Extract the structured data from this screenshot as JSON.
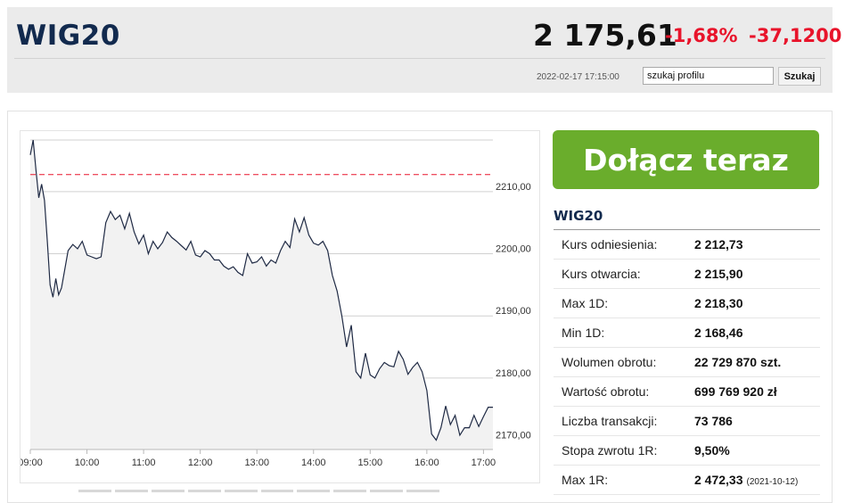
{
  "header": {
    "title": "WIG20",
    "price": "2 175,61",
    "change_pct": "-1,68%",
    "change_abs": "-37,1200",
    "timestamp": "2022-02-17 17:15:00",
    "search_value": "szukaj profilu",
    "search_button": "Szukaj"
  },
  "cta": {
    "label": "Dołącz teraz"
  },
  "stats": {
    "title": "WIG20",
    "rows": [
      {
        "label": "Kurs odniesienia:",
        "value": "2 212,73"
      },
      {
        "label": "Kurs otwarcia:",
        "value": "2 215,90"
      },
      {
        "label": "Max 1D:",
        "value": "2 218,30"
      },
      {
        "label": "Min 1D:",
        "value": "2 168,46"
      },
      {
        "label": "Wolumen obrotu:",
        "value": "22 729 870 szt."
      },
      {
        "label": "Wartość obrotu:",
        "value": "699 769 920 zł"
      },
      {
        "label": "Liczba transakcji:",
        "value": "73 786"
      },
      {
        "label": "Stopa zwrotu 1R:",
        "value": "9,50%"
      },
      {
        "label": "Max 1R:",
        "value": "2 472,33",
        "note": "(2021-10-12)"
      }
    ]
  },
  "colors": {
    "line": "#1f2a44",
    "fill": "#f2f2f2",
    "reference": "#e8142b",
    "grid": "#d0d0d0",
    "accent_green": "#6aad2c",
    "negative": "#e8142b"
  },
  "chart_data": {
    "type": "area",
    "xlabel": "",
    "ylabel": "",
    "x_ticks": [
      "09:00",
      "10:00",
      "11:00",
      "12:00",
      "13:00",
      "14:00",
      "15:00",
      "16:00",
      "17:00"
    ],
    "y_ticks": [
      "2170,00",
      "2180,00",
      "2190,00",
      "2200,00",
      "2210,00"
    ],
    "ylim": [
      2168.5,
      2218.3
    ],
    "reference_value": 2212.73,
    "grid": true,
    "x": [
      "09:00",
      "09:03",
      "09:06",
      "09:09",
      "09:12",
      "09:15",
      "09:18",
      "09:21",
      "09:24",
      "09:27",
      "09:30",
      "09:33",
      "09:36",
      "09:40",
      "09:45",
      "09:50",
      "09:55",
      "10:00",
      "10:05",
      "10:10",
      "10:15",
      "10:20",
      "10:25",
      "10:30",
      "10:35",
      "10:40",
      "10:45",
      "10:50",
      "10:55",
      "11:00",
      "11:05",
      "11:10",
      "11:15",
      "11:20",
      "11:25",
      "11:30",
      "11:35",
      "11:40",
      "11:45",
      "11:50",
      "11:55",
      "12:00",
      "12:05",
      "12:10",
      "12:15",
      "12:20",
      "12:25",
      "12:30",
      "12:35",
      "12:40",
      "12:45",
      "12:50",
      "12:55",
      "13:00",
      "13:05",
      "13:10",
      "13:15",
      "13:20",
      "13:25",
      "13:30",
      "13:35",
      "13:40",
      "13:45",
      "13:50",
      "13:55",
      "14:00",
      "14:05",
      "14:10",
      "14:15",
      "14:20",
      "14:25",
      "14:30",
      "14:35",
      "14:40",
      "14:45",
      "14:50",
      "14:55",
      "15:00",
      "15:05",
      "15:10",
      "15:15",
      "15:20",
      "15:25",
      "15:30",
      "15:35",
      "15:40",
      "15:45",
      "15:50",
      "15:55",
      "16:00",
      "16:05",
      "16:10",
      "16:15",
      "16:20",
      "16:25",
      "16:30",
      "16:35",
      "16:40",
      "16:45",
      "16:50",
      "16:55",
      "17:00",
      "17:05",
      "17:10"
    ],
    "y": [
      2215.9,
      2218.3,
      2213.4,
      2209.0,
      2211.2,
      2208.6,
      2202.0,
      2195.0,
      2193.0,
      2196.0,
      2193.4,
      2194.5,
      2197.0,
      2200.5,
      2201.5,
      2200.8,
      2202.0,
      2199.8,
      2199.5,
      2199.2,
      2199.5,
      2205.0,
      2206.8,
      2205.5,
      2206.2,
      2204.0,
      2206.5,
      2203.5,
      2201.6,
      2203.0,
      2200.0,
      2202.0,
      2200.8,
      2201.8,
      2203.5,
      2202.6,
      2202.0,
      2201.3,
      2200.6,
      2202.0,
      2199.8,
      2199.5,
      2200.5,
      2200.0,
      2199.0,
      2199.0,
      2198.0,
      2197.5,
      2197.9,
      2197.0,
      2196.5,
      2200.0,
      2198.5,
      2198.7,
      2199.5,
      2198.0,
      2199.0,
      2198.5,
      2200.5,
      2202.0,
      2201.0,
      2205.6,
      2203.5,
      2205.8,
      2203.0,
      2201.7,
      2201.4,
      2202.0,
      2200.5,
      2196.5,
      2194.0,
      2190.0,
      2185.0,
      2188.5,
      2181.0,
      2180.0,
      2184.0,
      2180.5,
      2180.0,
      2181.5,
      2182.5,
      2182.0,
      2181.8,
      2184.3,
      2183.0,
      2180.6,
      2181.7,
      2182.5,
      2181.0,
      2178.0,
      2171.0,
      2170.0,
      2172.0,
      2175.5,
      2172.5,
      2174.0,
      2170.8,
      2172.0,
      2172.0,
      2174.0,
      2172.2,
      2173.8,
      2175.3,
      2175.3
    ]
  }
}
